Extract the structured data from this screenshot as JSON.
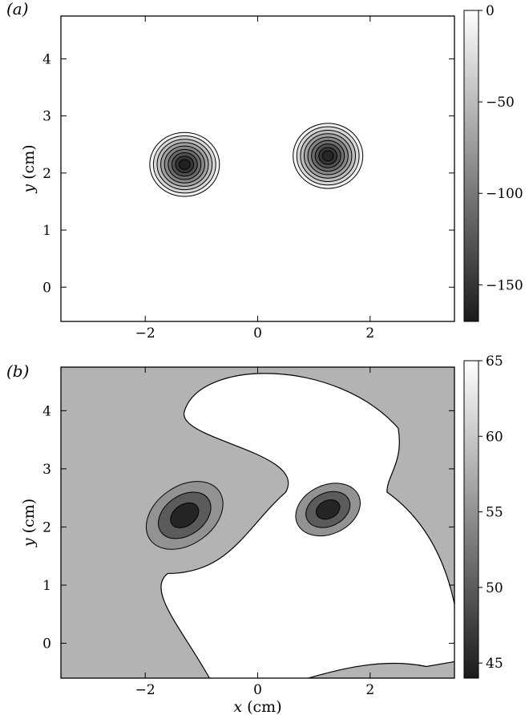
{
  "chart_data": [
    {
      "type": "heatmap",
      "panel_label": "(a)",
      "xlabel": "",
      "ylabel_var": "y",
      "ylabel_unit": " (cm)",
      "xlim": [
        -3.5,
        3.5
      ],
      "ylim": [
        -0.6,
        4.75
      ],
      "x_ticks": [
        -2,
        0,
        2
      ],
      "x_tick_labels": [
        "−2",
        "0",
        "2"
      ],
      "y_ticks": [
        0,
        1,
        2,
        3,
        4
      ],
      "y_tick_labels": [
        "0",
        "1",
        "2",
        "3",
        "4"
      ],
      "colorbar": {
        "range": [
          -170,
          0
        ],
        "ticks": [
          0,
          -50,
          -100,
          -150
        ],
        "tick_labels": [
          "0",
          "−50",
          "−100",
          "−150"
        ],
        "colors": [
          "#ffffff",
          "#1a1a1a"
        ]
      },
      "features": [
        {
          "x": -1.3,
          "y": 2.15,
          "rx": 0.62,
          "ry": 0.56,
          "rotation": 0,
          "levels": [
            -10,
            -30,
            -50,
            -70,
            -90,
            -110,
            -130,
            -150,
            -165
          ]
        },
        {
          "x": 1.25,
          "y": 2.3,
          "rx": 0.62,
          "ry": 0.57,
          "rotation": 0,
          "levels": [
            -10,
            -30,
            -50,
            -70,
            -90,
            -110,
            -130,
            -150,
            -160
          ]
        }
      ]
    },
    {
      "type": "heatmap",
      "panel_label": "(b)",
      "xlabel_var": "x",
      "xlabel_unit": " (cm)",
      "ylabel_var": "y",
      "ylabel_unit": " (cm)",
      "xlim": [
        -3.5,
        3.5
      ],
      "ylim": [
        -0.6,
        4.75
      ],
      "x_ticks": [
        -2,
        0,
        2
      ],
      "x_tick_labels": [
        "−2",
        "0",
        "2"
      ],
      "y_ticks": [
        0,
        1,
        2,
        3,
        4
      ],
      "y_tick_labels": [
        "0",
        "1",
        "2",
        "3",
        "4"
      ],
      "colorbar": {
        "range": [
          44,
          65
        ],
        "ticks": [
          65,
          60,
          55,
          50,
          45
        ],
        "tick_labels": [
          "65",
          "60",
          "55",
          "50",
          "45"
        ],
        "colors": [
          "#ffffff",
          "#1a1a1a"
        ]
      },
      "background_value": 58,
      "features": [
        {
          "x": -1.3,
          "y": 2.2,
          "rx": 0.75,
          "ry": 0.5,
          "rotation": -35,
          "levels": [
            55,
            50,
            45
          ]
        },
        {
          "x": 1.25,
          "y": 2.3,
          "rx": 0.6,
          "ry": 0.42,
          "rotation": -25,
          "levels": [
            55,
            50,
            45
          ]
        }
      ]
    }
  ]
}
